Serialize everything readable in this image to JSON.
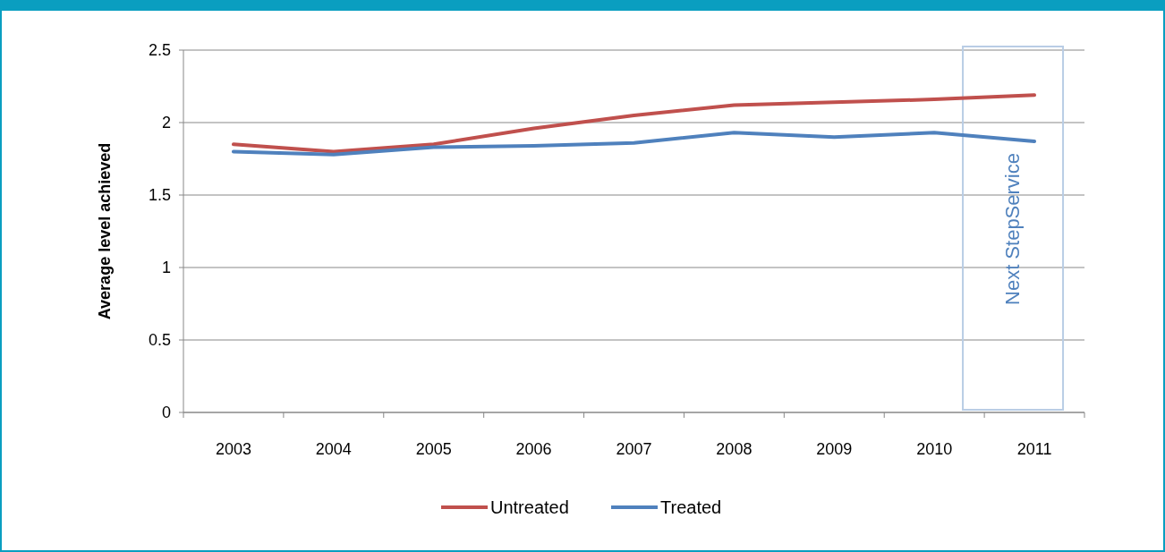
{
  "chart_data": {
    "type": "line",
    "ylabel": "Average level achieved",
    "categories": [
      "2003",
      "2004",
      "2005",
      "2006",
      "2007",
      "2008",
      "2009",
      "2010",
      "2011"
    ],
    "series": [
      {
        "name": "Untreated",
        "color": "#c0504d",
        "values": [
          1.85,
          1.8,
          1.85,
          1.96,
          2.05,
          2.12,
          2.14,
          2.16,
          2.19
        ]
      },
      {
        "name": "Treated",
        "color": "#4f81bd",
        "values": [
          1.8,
          1.78,
          1.83,
          1.84,
          1.86,
          1.93,
          1.9,
          1.93,
          1.87
        ]
      }
    ],
    "ylim": [
      0,
      2.5
    ],
    "yticks": [
      0,
      0.5,
      1,
      1.5,
      2,
      2.5
    ],
    "grid": "y",
    "legend": "bottom",
    "marker": "none",
    "line_style": "solid",
    "annotations": [
      "Next StepService"
    ]
  }
}
